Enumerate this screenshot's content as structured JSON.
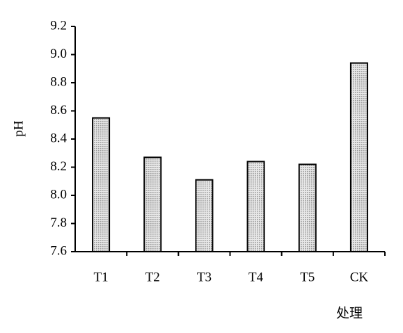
{
  "chart_data": {
    "type": "bar",
    "y_label": "pH",
    "x_label": "处理",
    "categories": [
      "T1",
      "T2",
      "T3",
      "T4",
      "T5",
      "CK"
    ],
    "values": [
      8.55,
      8.27,
      8.11,
      8.24,
      8.22,
      8.94
    ],
    "color": "#9a9a9a",
    "ylim": [
      7.6,
      9.2
    ],
    "yticks": [
      7.6,
      7.8,
      {
        "value": 8.0,
        "label": "8.0"
      },
      8.2,
      8.4,
      8.6,
      8.8,
      {
        "value": 9.0,
        "label": "9.0"
      },
      9.2
    ]
  }
}
